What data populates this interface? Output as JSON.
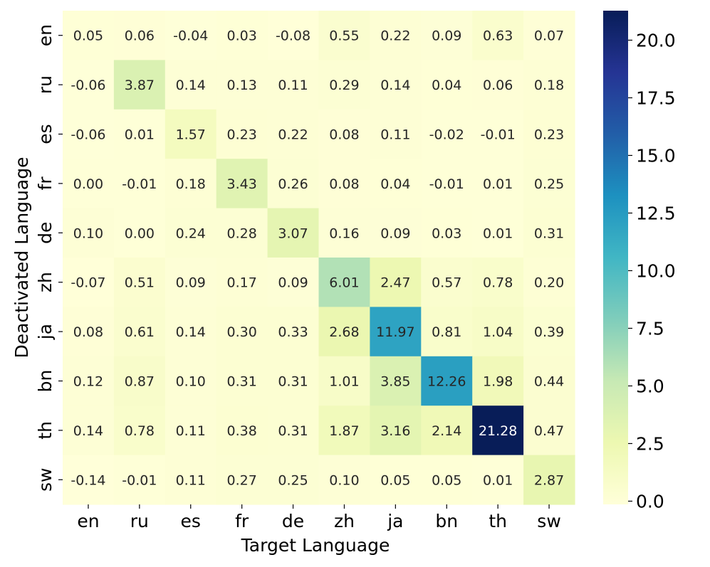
{
  "chart_data": {
    "type": "heatmap",
    "xlabel": "Target Language",
    "ylabel": "Deactivated Language",
    "x_categories": [
      "en",
      "ru",
      "es",
      "fr",
      "de",
      "zh",
      "ja",
      "bn",
      "th",
      "sw"
    ],
    "y_categories": [
      "en",
      "ru",
      "es",
      "fr",
      "de",
      "zh",
      "ja",
      "bn",
      "th",
      "sw"
    ],
    "values": [
      [
        0.05,
        0.06,
        -0.04,
        0.03,
        -0.08,
        0.55,
        0.22,
        0.09,
        0.63,
        0.07
      ],
      [
        -0.06,
        3.87,
        0.14,
        0.13,
        0.11,
        0.29,
        0.14,
        0.04,
        0.06,
        0.18
      ],
      [
        -0.06,
        0.01,
        1.57,
        0.23,
        0.22,
        0.08,
        0.11,
        -0.02,
        -0.01,
        0.23
      ],
      [
        0.0,
        -0.01,
        0.18,
        3.43,
        0.26,
        0.08,
        0.04,
        -0.01,
        0.01,
        0.25
      ],
      [
        0.1,
        0.0,
        0.24,
        0.28,
        3.07,
        0.16,
        0.09,
        0.03,
        0.01,
        0.31
      ],
      [
        -0.07,
        0.51,
        0.09,
        0.17,
        0.09,
        6.01,
        2.47,
        0.57,
        0.78,
        0.2
      ],
      [
        0.08,
        0.61,
        0.14,
        0.3,
        0.33,
        2.68,
        11.97,
        0.81,
        1.04,
        0.39
      ],
      [
        0.12,
        0.87,
        0.1,
        0.31,
        0.31,
        1.01,
        3.85,
        12.26,
        1.98,
        0.44
      ],
      [
        0.14,
        0.78,
        0.11,
        0.38,
        0.31,
        1.87,
        3.16,
        2.14,
        21.28,
        0.47
      ],
      [
        -0.14,
        -0.01,
        0.11,
        0.27,
        0.25,
        0.1,
        0.05,
        0.05,
        0.01,
        2.87
      ]
    ],
    "colorscale": "YlGnBu",
    "vmin": -0.14,
    "vmax": 21.28,
    "colorbar_ticks": [
      0.0,
      2.5,
      5.0,
      7.5,
      10.0,
      12.5,
      15.0,
      17.5,
      20.0
    ],
    "colorbar_tick_labels": [
      "0.0",
      "2.5",
      "5.0",
      "7.5",
      "10.0",
      "12.5",
      "15.0",
      "17.5",
      "20.0"
    ],
    "annotation_format": "2 decimals",
    "grid": false
  }
}
